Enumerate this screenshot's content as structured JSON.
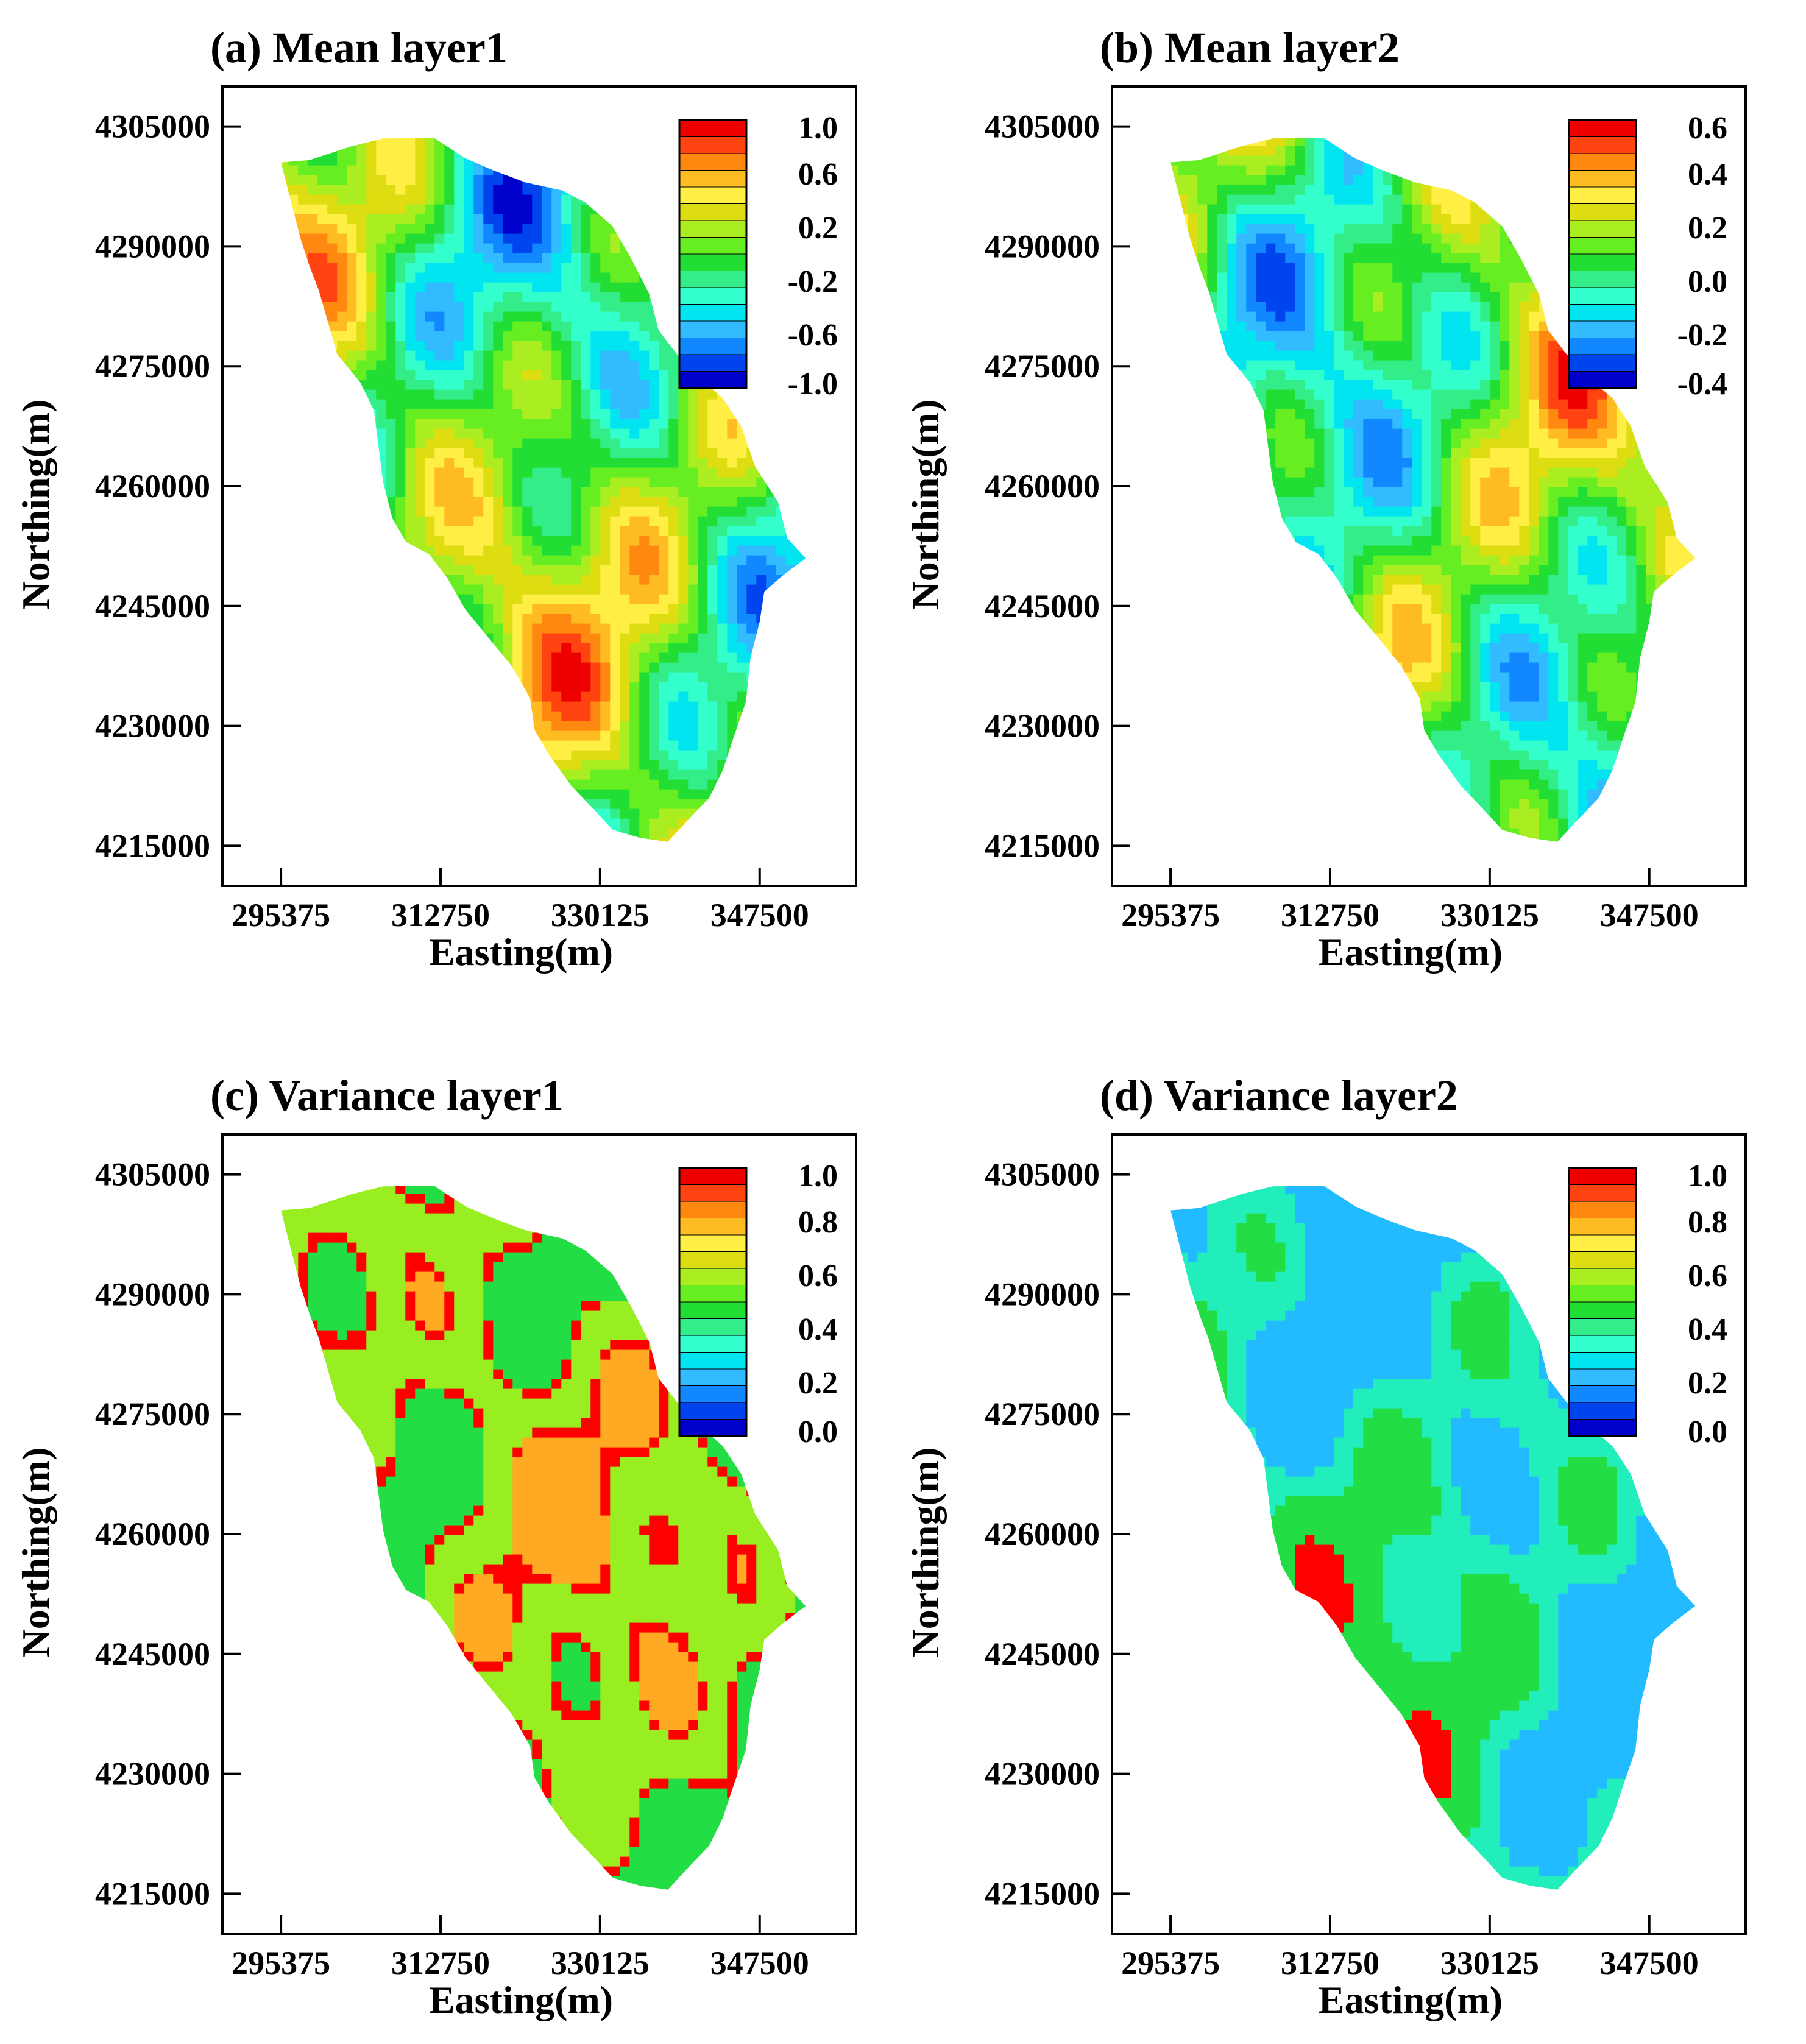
{
  "figure": {
    "colors": {
      "rainbow": [
        "#0000cc",
        "#0044ee",
        "#1188ff",
        "#33bbff",
        "#00e5f0",
        "#33ffcc",
        "#33ee88",
        "#22dd33",
        "#66ee22",
        "#aaee22",
        "#dddd11",
        "#ffee44",
        "#ffbb22",
        "#ff8811",
        "#ff4411",
        "#ee0000"
      ],
      "variance_green": "#99ee22",
      "variance_orange": "#ffaa22",
      "variance_red": "#ff0000",
      "variance_mid": "#22dd44",
      "variance_blue": "#22bbff",
      "variance_cyan": "#22eebb"
    }
  },
  "chart_data": [
    {
      "id": "a",
      "type": "heatmap",
      "title": "(a) Mean layer1",
      "xlabel": "Easting(m)",
      "ylabel": "Northing(m)",
      "x_ticks": [
        295375,
        312750,
        330125,
        347500
      ],
      "y_ticks": [
        4305000,
        4290000,
        4275000,
        4260000,
        4245000,
        4230000,
        4215000
      ],
      "xlim": [
        289000,
        358000
      ],
      "ylim": [
        4210000,
        4310000
      ],
      "colorbar": {
        "range": [
          -1.0,
          1.0
        ],
        "tick_labels": [
          "1.0",
          "0.6",
          "0.2",
          "-0.2",
          "-0.6",
          "-1.0"
        ],
        "tick_values": [
          1.0,
          0.6,
          0.2,
          -0.2,
          -0.6,
          -1.0
        ]
      },
      "color_scheme": "rainbow",
      "dominant_values": [
        0.3,
        0.5,
        -0.3,
        0.1
      ]
    },
    {
      "id": "b",
      "type": "heatmap",
      "title": "(b) Mean layer2",
      "xlabel": "Easting(m)",
      "ylabel": "Northing(m)",
      "x_ticks": [
        295375,
        312750,
        330125,
        347500
      ],
      "y_ticks": [
        4305000,
        4290000,
        4275000,
        4260000,
        4245000,
        4230000,
        4215000
      ],
      "xlim": [
        289000,
        358000
      ],
      "ylim": [
        4210000,
        4310000
      ],
      "colorbar": {
        "range": [
          -0.4,
          0.6
        ],
        "tick_labels": [
          "0.6",
          "0.4",
          "0.2",
          "0.0",
          "-0.2",
          "-0.4"
        ],
        "tick_values": [
          0.6,
          0.4,
          0.2,
          0.0,
          -0.2,
          -0.4
        ]
      },
      "color_scheme": "rainbow",
      "dominant_values": [
        0.05,
        0.25,
        0.45,
        -0.3
      ]
    },
    {
      "id": "c",
      "type": "heatmap",
      "title": "(c) Variance layer1",
      "xlabel": "Easting(m)",
      "ylabel": "Northing(m)",
      "x_ticks": [
        295375,
        312750,
        330125,
        347500
      ],
      "y_ticks": [
        4305000,
        4290000,
        4275000,
        4260000,
        4245000,
        4230000,
        4215000
      ],
      "xlim": [
        289000,
        358000
      ],
      "ylim": [
        4210000,
        4310000
      ],
      "colorbar": {
        "range": [
          0.0,
          1.0
        ],
        "tick_labels": [
          "1.0",
          "0.8",
          "0.6",
          "0.4",
          "0.2",
          "0.0"
        ],
        "tick_values": [
          1.0,
          0.8,
          0.6,
          0.4,
          0.2,
          0.0
        ]
      },
      "color_scheme": "variance1",
      "dominant_values": [
        0.7,
        0.85,
        0.55,
        1.0
      ]
    },
    {
      "id": "d",
      "type": "heatmap",
      "title": "(d) Variance layer2",
      "xlabel": "Easting(m)",
      "ylabel": "Northing(m)",
      "x_ticks": [
        295375,
        312750,
        330125,
        347500
      ],
      "y_ticks": [
        4305000,
        4290000,
        4275000,
        4260000,
        4245000,
        4230000,
        4215000
      ],
      "xlim": [
        289000,
        358000
      ],
      "ylim": [
        4210000,
        4310000
      ],
      "colorbar": {
        "range": [
          0.0,
          1.0
        ],
        "tick_labels": [
          "1.0",
          "0.8",
          "0.6",
          "0.4",
          "0.2",
          "0.0"
        ],
        "tick_values": [
          1.0,
          0.8,
          0.6,
          0.4,
          0.2,
          0.0
        ]
      },
      "color_scheme": "variance2",
      "dominant_values": [
        0.3,
        0.45,
        0.55,
        1.0
      ]
    }
  ]
}
